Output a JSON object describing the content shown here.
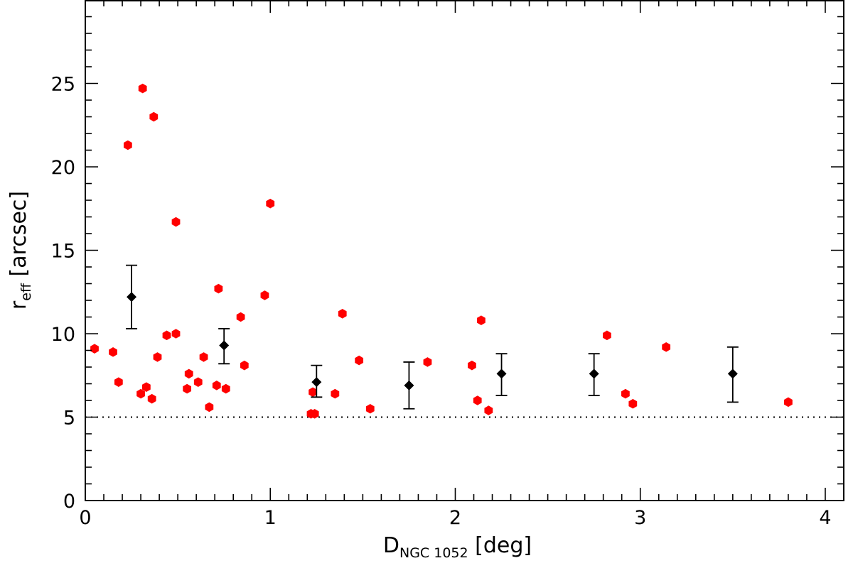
{
  "chart_data": {
    "type": "scatter",
    "xlabel": {
      "main": "D",
      "sub": "NGC 1052",
      "unit": "[deg]"
    },
    "ylabel": {
      "main": "r",
      "sub": "eff",
      "unit": "[arcsec]"
    },
    "xlim": [
      0,
      4.1
    ],
    "ylim": [
      0,
      30
    ],
    "x_ticks": [
      0,
      1,
      2,
      3,
      4
    ],
    "x_tick_labels": [
      "0",
      "1",
      "2",
      "3",
      "4"
    ],
    "y_ticks": [
      0,
      5,
      10,
      15,
      20,
      25
    ],
    "y_tick_labels": [
      "0",
      "5",
      "10",
      "15",
      "20",
      "25"
    ],
    "x_minor_step": 0.1,
    "y_minor_step": 1,
    "grid": false,
    "legend": "none",
    "reference_line": {
      "y": 5,
      "style": "dotted",
      "color": "#000000"
    },
    "series": [
      {
        "marker": "hexagon",
        "color": "#ff0000",
        "points": [
          [
            0.05,
            9.1
          ],
          [
            0.15,
            8.9
          ],
          [
            0.18,
            7.1
          ],
          [
            0.23,
            21.3
          ],
          [
            0.3,
            6.4
          ],
          [
            0.31,
            24.7
          ],
          [
            0.33,
            6.8
          ],
          [
            0.36,
            6.1
          ],
          [
            0.37,
            23.0
          ],
          [
            0.39,
            8.6
          ],
          [
            0.44,
            9.9
          ],
          [
            0.49,
            10.0
          ],
          [
            0.49,
            16.7
          ],
          [
            0.55,
            6.7
          ],
          [
            0.56,
            7.6
          ],
          [
            0.61,
            7.1
          ],
          [
            0.64,
            8.6
          ],
          [
            0.67,
            5.6
          ],
          [
            0.71,
            6.9
          ],
          [
            0.72,
            12.7
          ],
          [
            0.76,
            6.7
          ],
          [
            0.84,
            11.0
          ],
          [
            0.86,
            8.1
          ],
          [
            0.97,
            12.3
          ],
          [
            1.0,
            17.8
          ],
          [
            1.22,
            5.2
          ],
          [
            1.23,
            6.5
          ],
          [
            1.24,
            5.2
          ],
          [
            1.35,
            6.4
          ],
          [
            1.39,
            11.2
          ],
          [
            1.48,
            8.4
          ],
          [
            1.54,
            5.5
          ],
          [
            1.85,
            8.3
          ],
          [
            2.09,
            8.1
          ],
          [
            2.12,
            6.0
          ],
          [
            2.14,
            10.8
          ],
          [
            2.18,
            5.4
          ],
          [
            2.82,
            9.9
          ],
          [
            2.92,
            6.4
          ],
          [
            2.96,
            5.8
          ],
          [
            3.14,
            9.2
          ],
          [
            3.8,
            5.9
          ]
        ]
      },
      {
        "marker": "diamond",
        "color": "#000000",
        "error_bars": true,
        "points": [
          {
            "x": 0.25,
            "y": 12.2,
            "lo": 10.3,
            "hi": 14.1
          },
          {
            "x": 0.75,
            "y": 9.3,
            "lo": 8.2,
            "hi": 10.3
          },
          {
            "x": 1.25,
            "y": 7.1,
            "lo": 6.2,
            "hi": 8.1
          },
          {
            "x": 1.75,
            "y": 6.9,
            "lo": 5.5,
            "hi": 8.3
          },
          {
            "x": 2.25,
            "y": 7.6,
            "lo": 6.3,
            "hi": 8.8
          },
          {
            "x": 2.75,
            "y": 7.6,
            "lo": 6.3,
            "hi": 8.8
          },
          {
            "x": 3.5,
            "y": 7.6,
            "lo": 5.9,
            "hi": 9.2
          }
        ]
      }
    ]
  }
}
